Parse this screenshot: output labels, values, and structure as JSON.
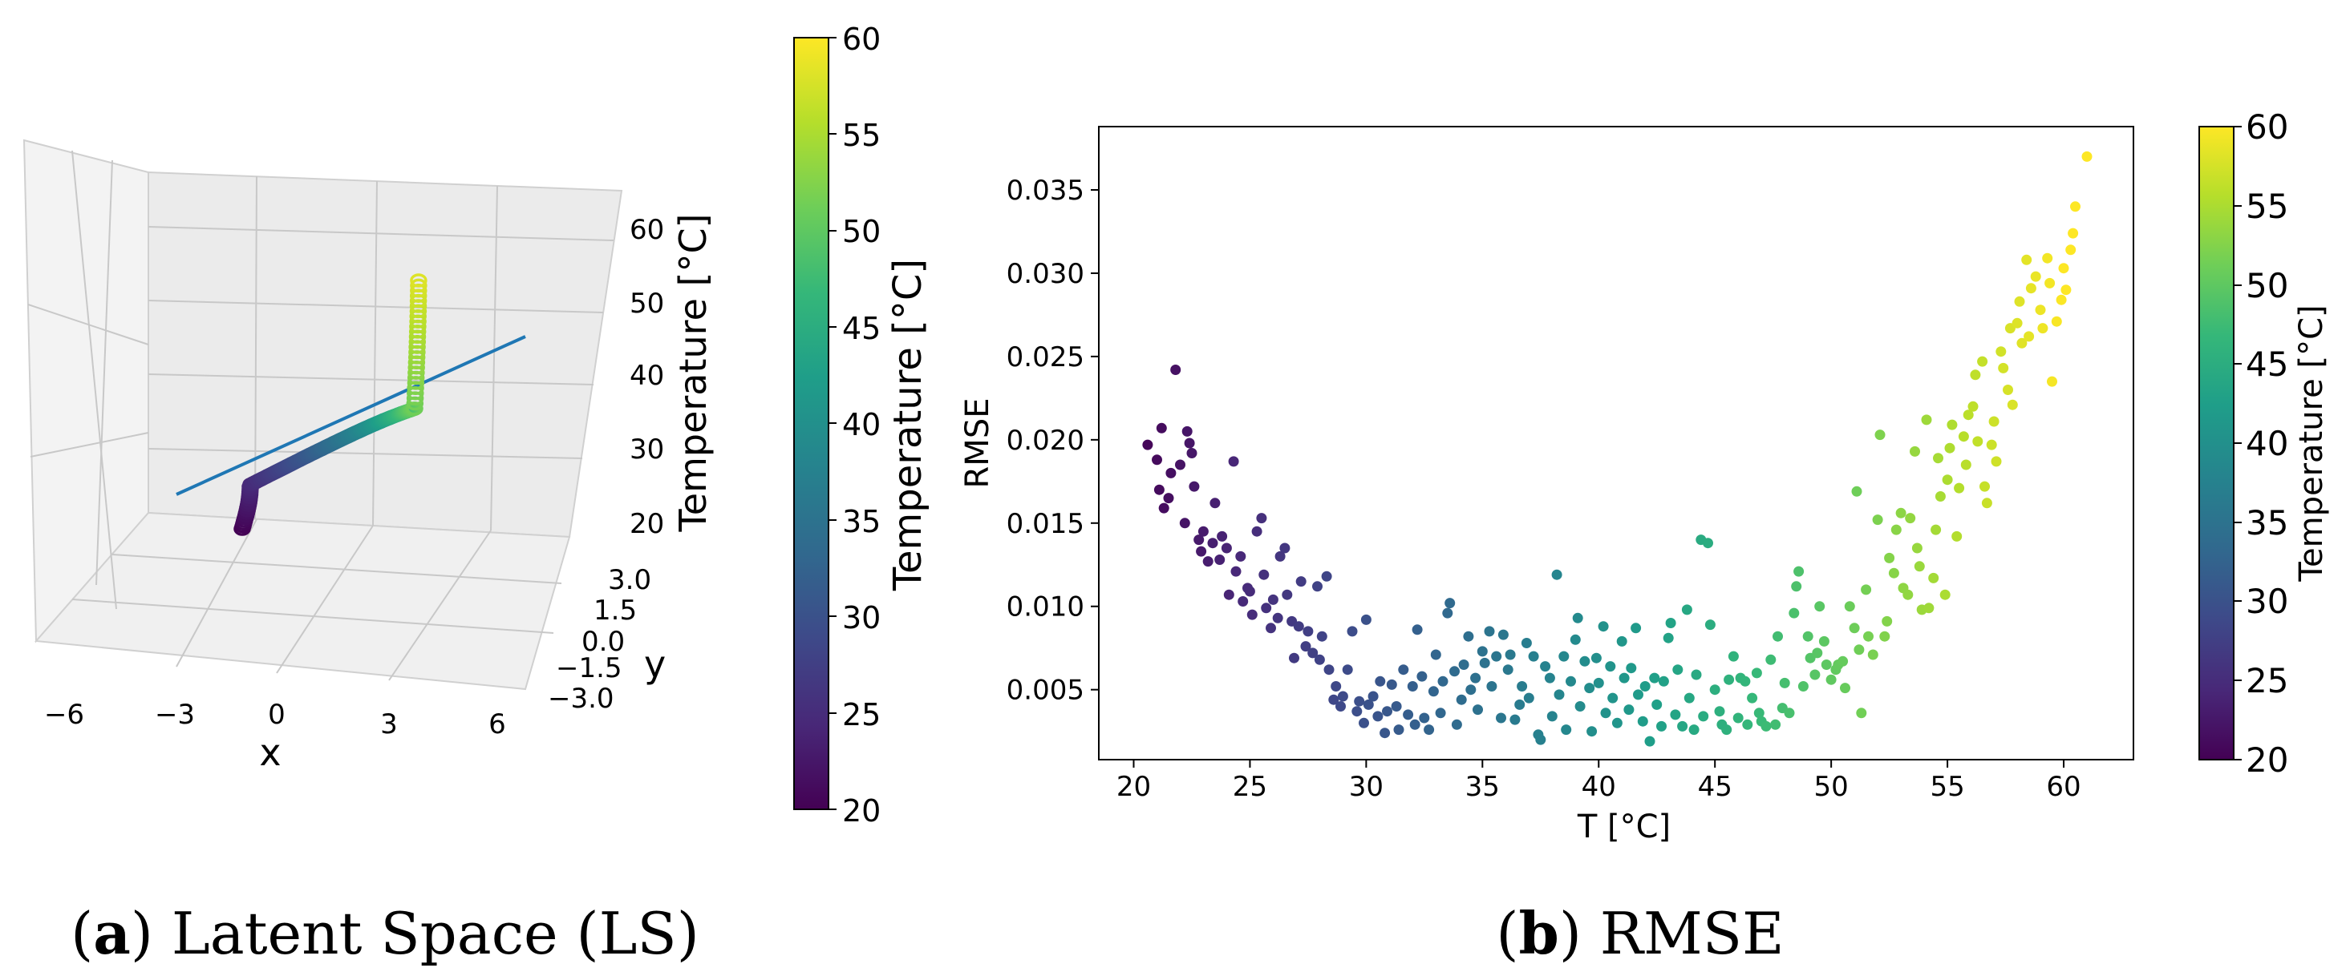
{
  "figure_a": {
    "caption_letter": "a",
    "caption_text": ") Latent Space (LS)",
    "caption_open": "("
  },
  "figure_b": {
    "caption_letter": "b",
    "caption_text": ") RMSE",
    "caption_open": "("
  },
  "colors": {
    "line": "#1f77b4",
    "pane": "#f2f2f2",
    "grid": "#c8c8c8",
    "viridis": [
      "#440154",
      "#482878",
      "#3e4989",
      "#31688e",
      "#26828e",
      "#1f9e89",
      "#35b779",
      "#6ece58",
      "#b5de2b",
      "#fde725"
    ]
  },
  "chart_data": [
    {
      "type": "scatter3d",
      "title": "",
      "xlabel": "x",
      "ylabel": "y",
      "zlabel": "Temperature [°C]",
      "x_ticks": [
        "−6",
        "−3",
        "0",
        "3",
        "6"
      ],
      "y_ticks": [
        "3.0",
        "1.5",
        "0.0",
        "−1.5",
        "−3.0"
      ],
      "z_ticks": [
        "60",
        "50",
        "40",
        "30",
        "20"
      ],
      "xlim": [
        -7,
        7
      ],
      "ylim": [
        -3,
        3
      ],
      "zlim": [
        18,
        64
      ],
      "curve_description": "S-shaped latent trajectory from 20 °C to 58 °C with a straight fitted line",
      "colorbar": {
        "label": "Temperature [°C]",
        "range": [
          20,
          60
        ],
        "ticks": [
          "60",
          "55",
          "50",
          "45",
          "40",
          "35",
          "30",
          "25",
          "20"
        ]
      }
    },
    {
      "type": "scatter",
      "title": "",
      "xlabel": "T [°C]",
      "ylabel": "RMSE",
      "xlim": [
        18.5,
        63
      ],
      "ylim": [
        0.0008,
        0.0388
      ],
      "x_ticks": [
        "20",
        "25",
        "30",
        "35",
        "40",
        "45",
        "50",
        "55",
        "60"
      ],
      "y_ticks": [
        "0.005",
        "0.010",
        "0.015",
        "0.020",
        "0.025",
        "0.030",
        "0.035"
      ],
      "colorbar": {
        "label": "Temperature [°C]",
        "range": [
          20,
          60
        ],
        "ticks": [
          "60",
          "55",
          "50",
          "45",
          "40",
          "35",
          "30",
          "25",
          "20"
        ]
      },
      "points": [
        [
          20.6,
          0.0197
        ],
        [
          21.0,
          0.0188
        ],
        [
          21.2,
          0.0207
        ],
        [
          21.1,
          0.017
        ],
        [
          21.3,
          0.0159
        ],
        [
          21.5,
          0.0165
        ],
        [
          21.6,
          0.018
        ],
        [
          21.8,
          0.0242
        ],
        [
          22.0,
          0.0185
        ],
        [
          22.2,
          0.015
        ],
        [
          22.3,
          0.0205
        ],
        [
          22.4,
          0.0198
        ],
        [
          22.5,
          0.0192
        ],
        [
          22.6,
          0.0172
        ],
        [
          22.8,
          0.014
        ],
        [
          22.9,
          0.0133
        ],
        [
          23.0,
          0.0145
        ],
        [
          23.2,
          0.0127
        ],
        [
          23.4,
          0.0138
        ],
        [
          23.5,
          0.0162
        ],
        [
          23.7,
          0.0128
        ],
        [
          23.8,
          0.0142
        ],
        [
          24.0,
          0.0135
        ],
        [
          24.1,
          0.0107
        ],
        [
          24.3,
          0.0187
        ],
        [
          24.4,
          0.0121
        ],
        [
          24.6,
          0.013
        ],
        [
          24.7,
          0.0103
        ],
        [
          24.9,
          0.0111
        ],
        [
          25.0,
          0.0109
        ],
        [
          25.1,
          0.0095
        ],
        [
          25.3,
          0.0145
        ],
        [
          25.5,
          0.0153
        ],
        [
          25.6,
          0.0119
        ],
        [
          25.7,
          0.0099
        ],
        [
          25.9,
          0.0087
        ],
        [
          26.0,
          0.0104
        ],
        [
          26.2,
          0.0093
        ],
        [
          26.3,
          0.013
        ],
        [
          26.5,
          0.0135
        ],
        [
          26.6,
          0.0107
        ],
        [
          26.8,
          0.0091
        ],
        [
          26.9,
          0.0069
        ],
        [
          27.1,
          0.0088
        ],
        [
          27.2,
          0.0115
        ],
        [
          27.4,
          0.0076
        ],
        [
          27.5,
          0.0085
        ],
        [
          27.7,
          0.0072
        ],
        [
          27.9,
          0.0112
        ],
        [
          28.0,
          0.0068
        ],
        [
          28.1,
          0.0082
        ],
        [
          28.3,
          0.0118
        ],
        [
          28.4,
          0.0062
        ],
        [
          28.6,
          0.0044
        ],
        [
          28.7,
          0.0052
        ],
        [
          28.9,
          0.004
        ],
        [
          29.0,
          0.0046
        ],
        [
          29.2,
          0.0062
        ],
        [
          29.4,
          0.0085
        ],
        [
          29.6,
          0.0037
        ],
        [
          29.7,
          0.0043
        ],
        [
          29.9,
          0.003
        ],
        [
          30.0,
          0.0092
        ],
        [
          30.1,
          0.0041
        ],
        [
          30.3,
          0.0046
        ],
        [
          30.5,
          0.0034
        ],
        [
          30.6,
          0.0055
        ],
        [
          30.8,
          0.0024
        ],
        [
          30.9,
          0.0037
        ],
        [
          31.1,
          0.0053
        ],
        [
          31.3,
          0.004
        ],
        [
          31.4,
          0.0026
        ],
        [
          31.6,
          0.0062
        ],
        [
          31.8,
          0.0035
        ],
        [
          32.0,
          0.0052
        ],
        [
          32.1,
          0.0029
        ],
        [
          32.2,
          0.0086
        ],
        [
          32.4,
          0.0058
        ],
        [
          32.5,
          0.0033
        ],
        [
          32.7,
          0.0026
        ],
        [
          32.9,
          0.0049
        ],
        [
          33.0,
          0.0071
        ],
        [
          33.2,
          0.0036
        ],
        [
          33.3,
          0.0055
        ],
        [
          33.5,
          0.0096
        ],
        [
          33.6,
          0.0102
        ],
        [
          33.8,
          0.0061
        ],
        [
          33.9,
          0.0029
        ],
        [
          34.1,
          0.0044
        ],
        [
          34.2,
          0.0065
        ],
        [
          34.4,
          0.0082
        ],
        [
          34.5,
          0.005
        ],
        [
          34.7,
          0.0057
        ],
        [
          34.8,
          0.0038
        ],
        [
          35.0,
          0.0073
        ],
        [
          35.1,
          0.0066
        ],
        [
          35.3,
          0.0085
        ],
        [
          35.4,
          0.0052
        ],
        [
          35.6,
          0.007
        ],
        [
          35.8,
          0.0033
        ],
        [
          35.9,
          0.0083
        ],
        [
          36.1,
          0.0062
        ],
        [
          36.2,
          0.0071
        ],
        [
          36.4,
          0.0032
        ],
        [
          36.6,
          0.0041
        ],
        [
          36.7,
          0.0052
        ],
        [
          36.9,
          0.0078
        ],
        [
          37.0,
          0.0045
        ],
        [
          37.2,
          0.007
        ],
        [
          37.4,
          0.0023
        ],
        [
          37.5,
          0.002
        ],
        [
          37.7,
          0.0064
        ],
        [
          37.9,
          0.0057
        ],
        [
          38.0,
          0.0034
        ],
        [
          38.2,
          0.0119
        ],
        [
          38.3,
          0.0047
        ],
        [
          38.5,
          0.007
        ],
        [
          38.6,
          0.0026
        ],
        [
          38.8,
          0.0055
        ],
        [
          39.0,
          0.008
        ],
        [
          39.1,
          0.0093
        ],
        [
          39.2,
          0.004
        ],
        [
          39.4,
          0.0067
        ],
        [
          39.6,
          0.0051
        ],
        [
          39.7,
          0.0025
        ],
        [
          39.9,
          0.0069
        ],
        [
          40.0,
          0.0054
        ],
        [
          40.2,
          0.0088
        ],
        [
          40.3,
          0.0036
        ],
        [
          40.5,
          0.0064
        ],
        [
          40.6,
          0.0045
        ],
        [
          40.8,
          0.003
        ],
        [
          41.0,
          0.0079
        ],
        [
          41.1,
          0.0057
        ],
        [
          41.3,
          0.0038
        ],
        [
          41.4,
          0.0063
        ],
        [
          41.6,
          0.0087
        ],
        [
          41.7,
          0.0047
        ],
        [
          41.9,
          0.0031
        ],
        [
          42.0,
          0.0052
        ],
        [
          42.2,
          0.0019
        ],
        [
          42.4,
          0.0057
        ],
        [
          42.5,
          0.0041
        ],
        [
          42.7,
          0.0028
        ],
        [
          42.8,
          0.0055
        ],
        [
          43.0,
          0.0081
        ],
        [
          43.1,
          0.009
        ],
        [
          43.3,
          0.0035
        ],
        [
          43.4,
          0.0062
        ],
        [
          43.6,
          0.0028
        ],
        [
          43.8,
          0.0098
        ],
        [
          43.9,
          0.0045
        ],
        [
          44.1,
          0.0026
        ],
        [
          44.2,
          0.0059
        ],
        [
          44.4,
          0.014
        ],
        [
          44.5,
          0.0034
        ],
        [
          44.7,
          0.0138
        ],
        [
          44.8,
          0.0089
        ],
        [
          45.0,
          0.005
        ],
        [
          45.2,
          0.0037
        ],
        [
          45.3,
          0.0029
        ],
        [
          45.5,
          0.0026
        ],
        [
          45.6,
          0.0056
        ],
        [
          45.8,
          0.007
        ],
        [
          46.0,
          0.0033
        ],
        [
          46.1,
          0.0057
        ],
        [
          46.3,
          0.0055
        ],
        [
          46.4,
          0.0029
        ],
        [
          46.6,
          0.0045
        ],
        [
          46.8,
          0.006
        ],
        [
          46.9,
          0.0036
        ],
        [
          47.0,
          0.0031
        ],
        [
          47.2,
          0.0028
        ],
        [
          47.4,
          0.0068
        ],
        [
          47.6,
          0.0029
        ],
        [
          47.7,
          0.0082
        ],
        [
          47.9,
          0.0039
        ],
        [
          48.0,
          0.0054
        ],
        [
          48.2,
          0.0036
        ],
        [
          48.4,
          0.0096
        ],
        [
          48.5,
          0.0112
        ],
        [
          48.6,
          0.0121
        ],
        [
          48.8,
          0.0052
        ],
        [
          49.0,
          0.0082
        ],
        [
          49.1,
          0.0069
        ],
        [
          49.3,
          0.0059
        ],
        [
          49.4,
          0.0072
        ],
        [
          49.5,
          0.01
        ],
        [
          49.7,
          0.0079
        ],
        [
          49.8,
          0.0065
        ],
        [
          50.0,
          0.0056
        ],
        [
          50.2,
          0.0062
        ],
        [
          50.3,
          0.0065
        ],
        [
          50.5,
          0.0067
        ],
        [
          50.6,
          0.0051
        ],
        [
          50.8,
          0.01
        ],
        [
          51.0,
          0.0087
        ],
        [
          51.1,
          0.0169
        ],
        [
          51.2,
          0.0074
        ],
        [
          51.3,
          0.0036
        ],
        [
          51.5,
          0.011
        ],
        [
          51.6,
          0.0082
        ],
        [
          51.8,
          0.0071
        ],
        [
          52.0,
          0.0152
        ],
        [
          52.1,
          0.0203
        ],
        [
          52.3,
          0.0082
        ],
        [
          52.4,
          0.0091
        ],
        [
          52.5,
          0.0129
        ],
        [
          52.7,
          0.012
        ],
        [
          52.8,
          0.0146
        ],
        [
          53.0,
          0.0156
        ],
        [
          53.1,
          0.0111
        ],
        [
          53.3,
          0.0107
        ],
        [
          53.4,
          0.0153
        ],
        [
          53.6,
          0.0193
        ],
        [
          53.7,
          0.0135
        ],
        [
          53.8,
          0.0124
        ],
        [
          53.9,
          0.0098
        ],
        [
          54.1,
          0.0212
        ],
        [
          54.2,
          0.0099
        ],
        [
          54.4,
          0.0117
        ],
        [
          54.5,
          0.0146
        ],
        [
          54.6,
          0.0189
        ],
        [
          54.7,
          0.0166
        ],
        [
          54.9,
          0.0107
        ],
        [
          55.0,
          0.0176
        ],
        [
          55.1,
          0.0195
        ],
        [
          55.2,
          0.0209
        ],
        [
          55.4,
          0.0142
        ],
        [
          55.5,
          0.0171
        ],
        [
          55.7,
          0.0202
        ],
        [
          55.8,
          0.0185
        ],
        [
          55.9,
          0.0215
        ],
        [
          56.1,
          0.022
        ],
        [
          56.2,
          0.0239
        ],
        [
          56.3,
          0.0199
        ],
        [
          56.5,
          0.0247
        ],
        [
          56.6,
          0.0172
        ],
        [
          56.7,
          0.0162
        ],
        [
          56.9,
          0.0197
        ],
        [
          57.0,
          0.0211
        ],
        [
          57.1,
          0.0187
        ],
        [
          57.3,
          0.0253
        ],
        [
          57.4,
          0.0243
        ],
        [
          57.6,
          0.023
        ],
        [
          57.7,
          0.0267
        ],
        [
          57.8,
          0.0221
        ],
        [
          58.0,
          0.027
        ],
        [
          58.1,
          0.0283
        ],
        [
          58.2,
          0.0258
        ],
        [
          58.4,
          0.0308
        ],
        [
          58.5,
          0.0262
        ],
        [
          58.6,
          0.0291
        ],
        [
          58.8,
          0.0298
        ],
        [
          59.0,
          0.0278
        ],
        [
          59.1,
          0.0267
        ],
        [
          59.3,
          0.0309
        ],
        [
          59.4,
          0.0294
        ],
        [
          59.5,
          0.0235
        ],
        [
          59.7,
          0.0271
        ],
        [
          59.9,
          0.0284
        ],
        [
          60.0,
          0.0303
        ],
        [
          60.1,
          0.029
        ],
        [
          60.3,
          0.0314
        ],
        [
          60.4,
          0.0324
        ],
        [
          60.5,
          0.034
        ],
        [
          61.0,
          0.037
        ]
      ]
    }
  ]
}
